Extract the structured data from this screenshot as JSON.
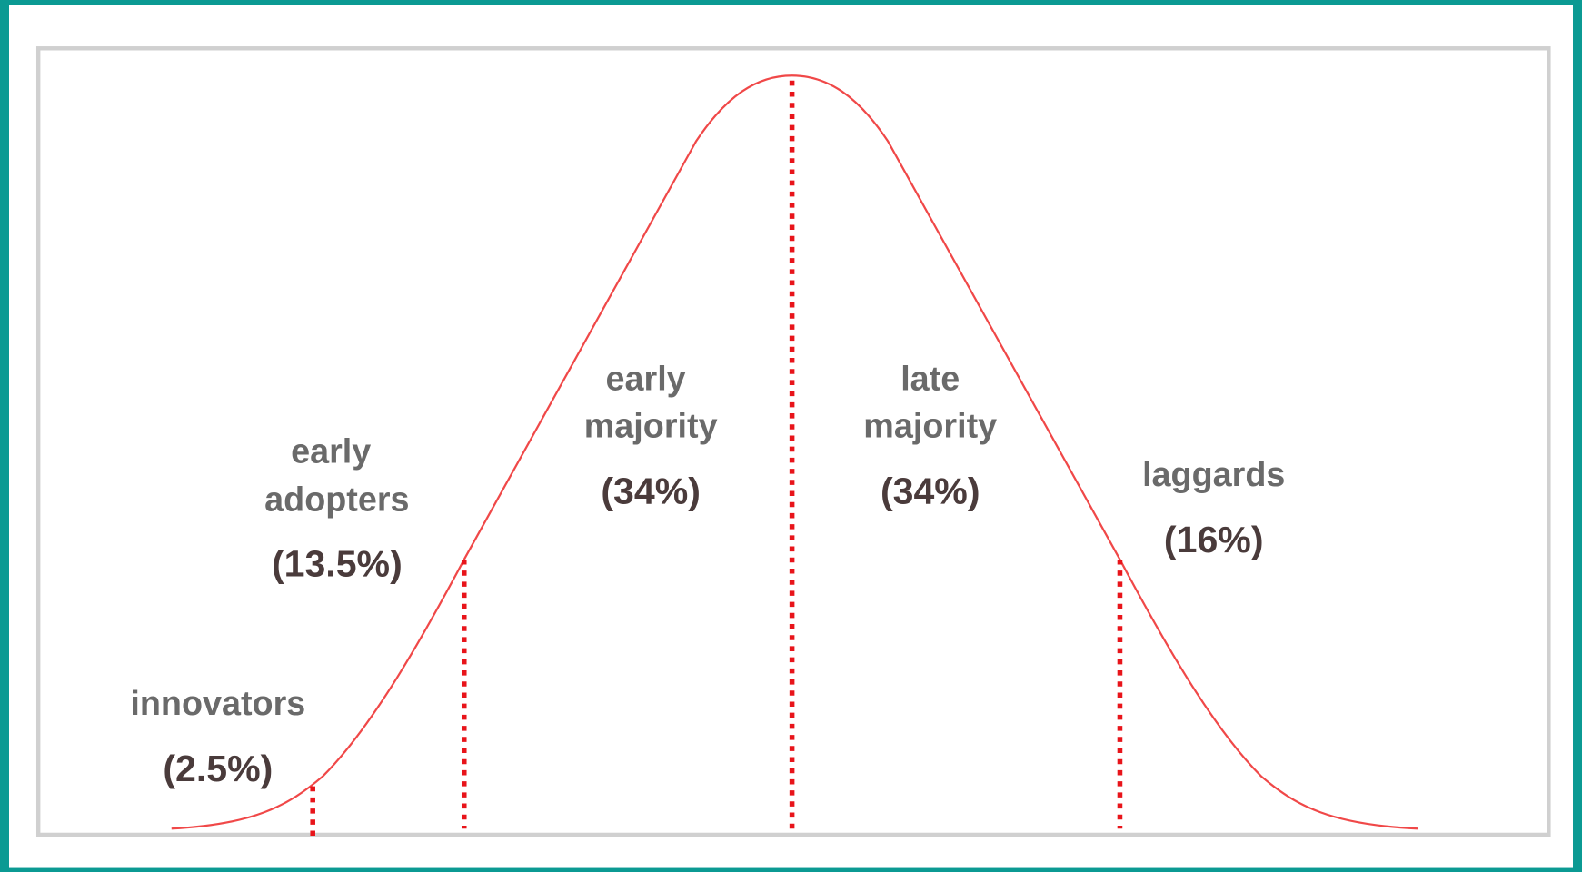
{
  "segments": [
    {
      "label": [
        "innovators"
      ],
      "share": "(2.5%)"
    },
    {
      "label": [
        "early",
        "adopters"
      ],
      "share": "(13.5%)"
    },
    {
      "label": [
        "early",
        "majority"
      ],
      "share": "(34%)"
    },
    {
      "label": [
        "late",
        "majority"
      ],
      "share": "(34%)"
    },
    {
      "label": [
        "laggards"
      ],
      "share": "(16%)"
    }
  ]
}
